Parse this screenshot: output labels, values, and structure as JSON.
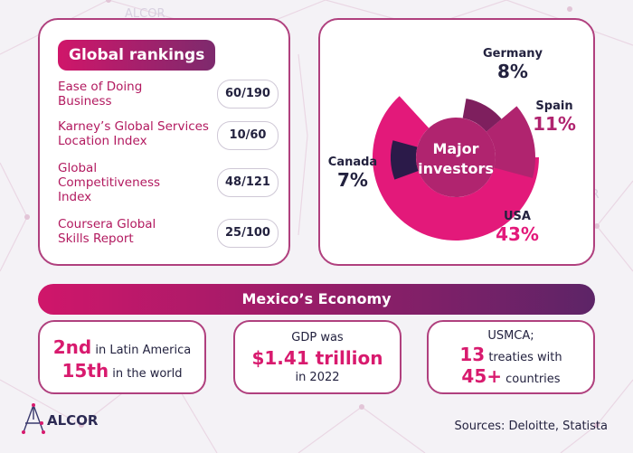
{
  "brand": "ALCOR",
  "watermark_text": "ALCOR",
  "colors": {
    "accent": "#d81a6e",
    "dark": "#23223f",
    "purple": "#5d2467"
  },
  "rankings": {
    "title": "Global rankings",
    "items": [
      {
        "label_lines": [
          "Ease of Doing",
          "Business"
        ],
        "value": "60/190"
      },
      {
        "label_lines": [
          "Karney’s Global Services",
          "Location Index"
        ],
        "value": "10/60"
      },
      {
        "label_lines": [
          "Global",
          "Competitiveness",
          "Index"
        ],
        "value": "48/121"
      },
      {
        "label_lines": [
          "Coursera Global",
          "Skills Report"
        ],
        "value": "25/100"
      }
    ]
  },
  "chart_data": {
    "type": "pie",
    "title": "Major investors",
    "categories": [
      "USA",
      "Spain",
      "Germany",
      "Canada"
    ],
    "values": [
      43,
      11,
      8,
      7
    ],
    "labels": [
      "43%",
      "11%",
      "8%",
      "7%"
    ],
    "colors": [
      "#e3197a",
      "#b0246f",
      "#7e1f5e",
      "#2b1a49"
    ]
  },
  "economy": {
    "title": "Mexico’s Economy",
    "card1": {
      "a_big": "2nd",
      "a_text": " in Latin America",
      "b_big": "15th",
      "b_text": " in the world"
    },
    "card2": {
      "line1": "GDP was",
      "big": "$1.41 trillion",
      "line3": "in 2022"
    },
    "card3": {
      "line1": "USMCA;",
      "a_big": "13",
      "a_text": " treaties with",
      "b_big": "45+",
      "b_text": " countries"
    }
  },
  "sources": "Sources: Deloitte, Statista"
}
